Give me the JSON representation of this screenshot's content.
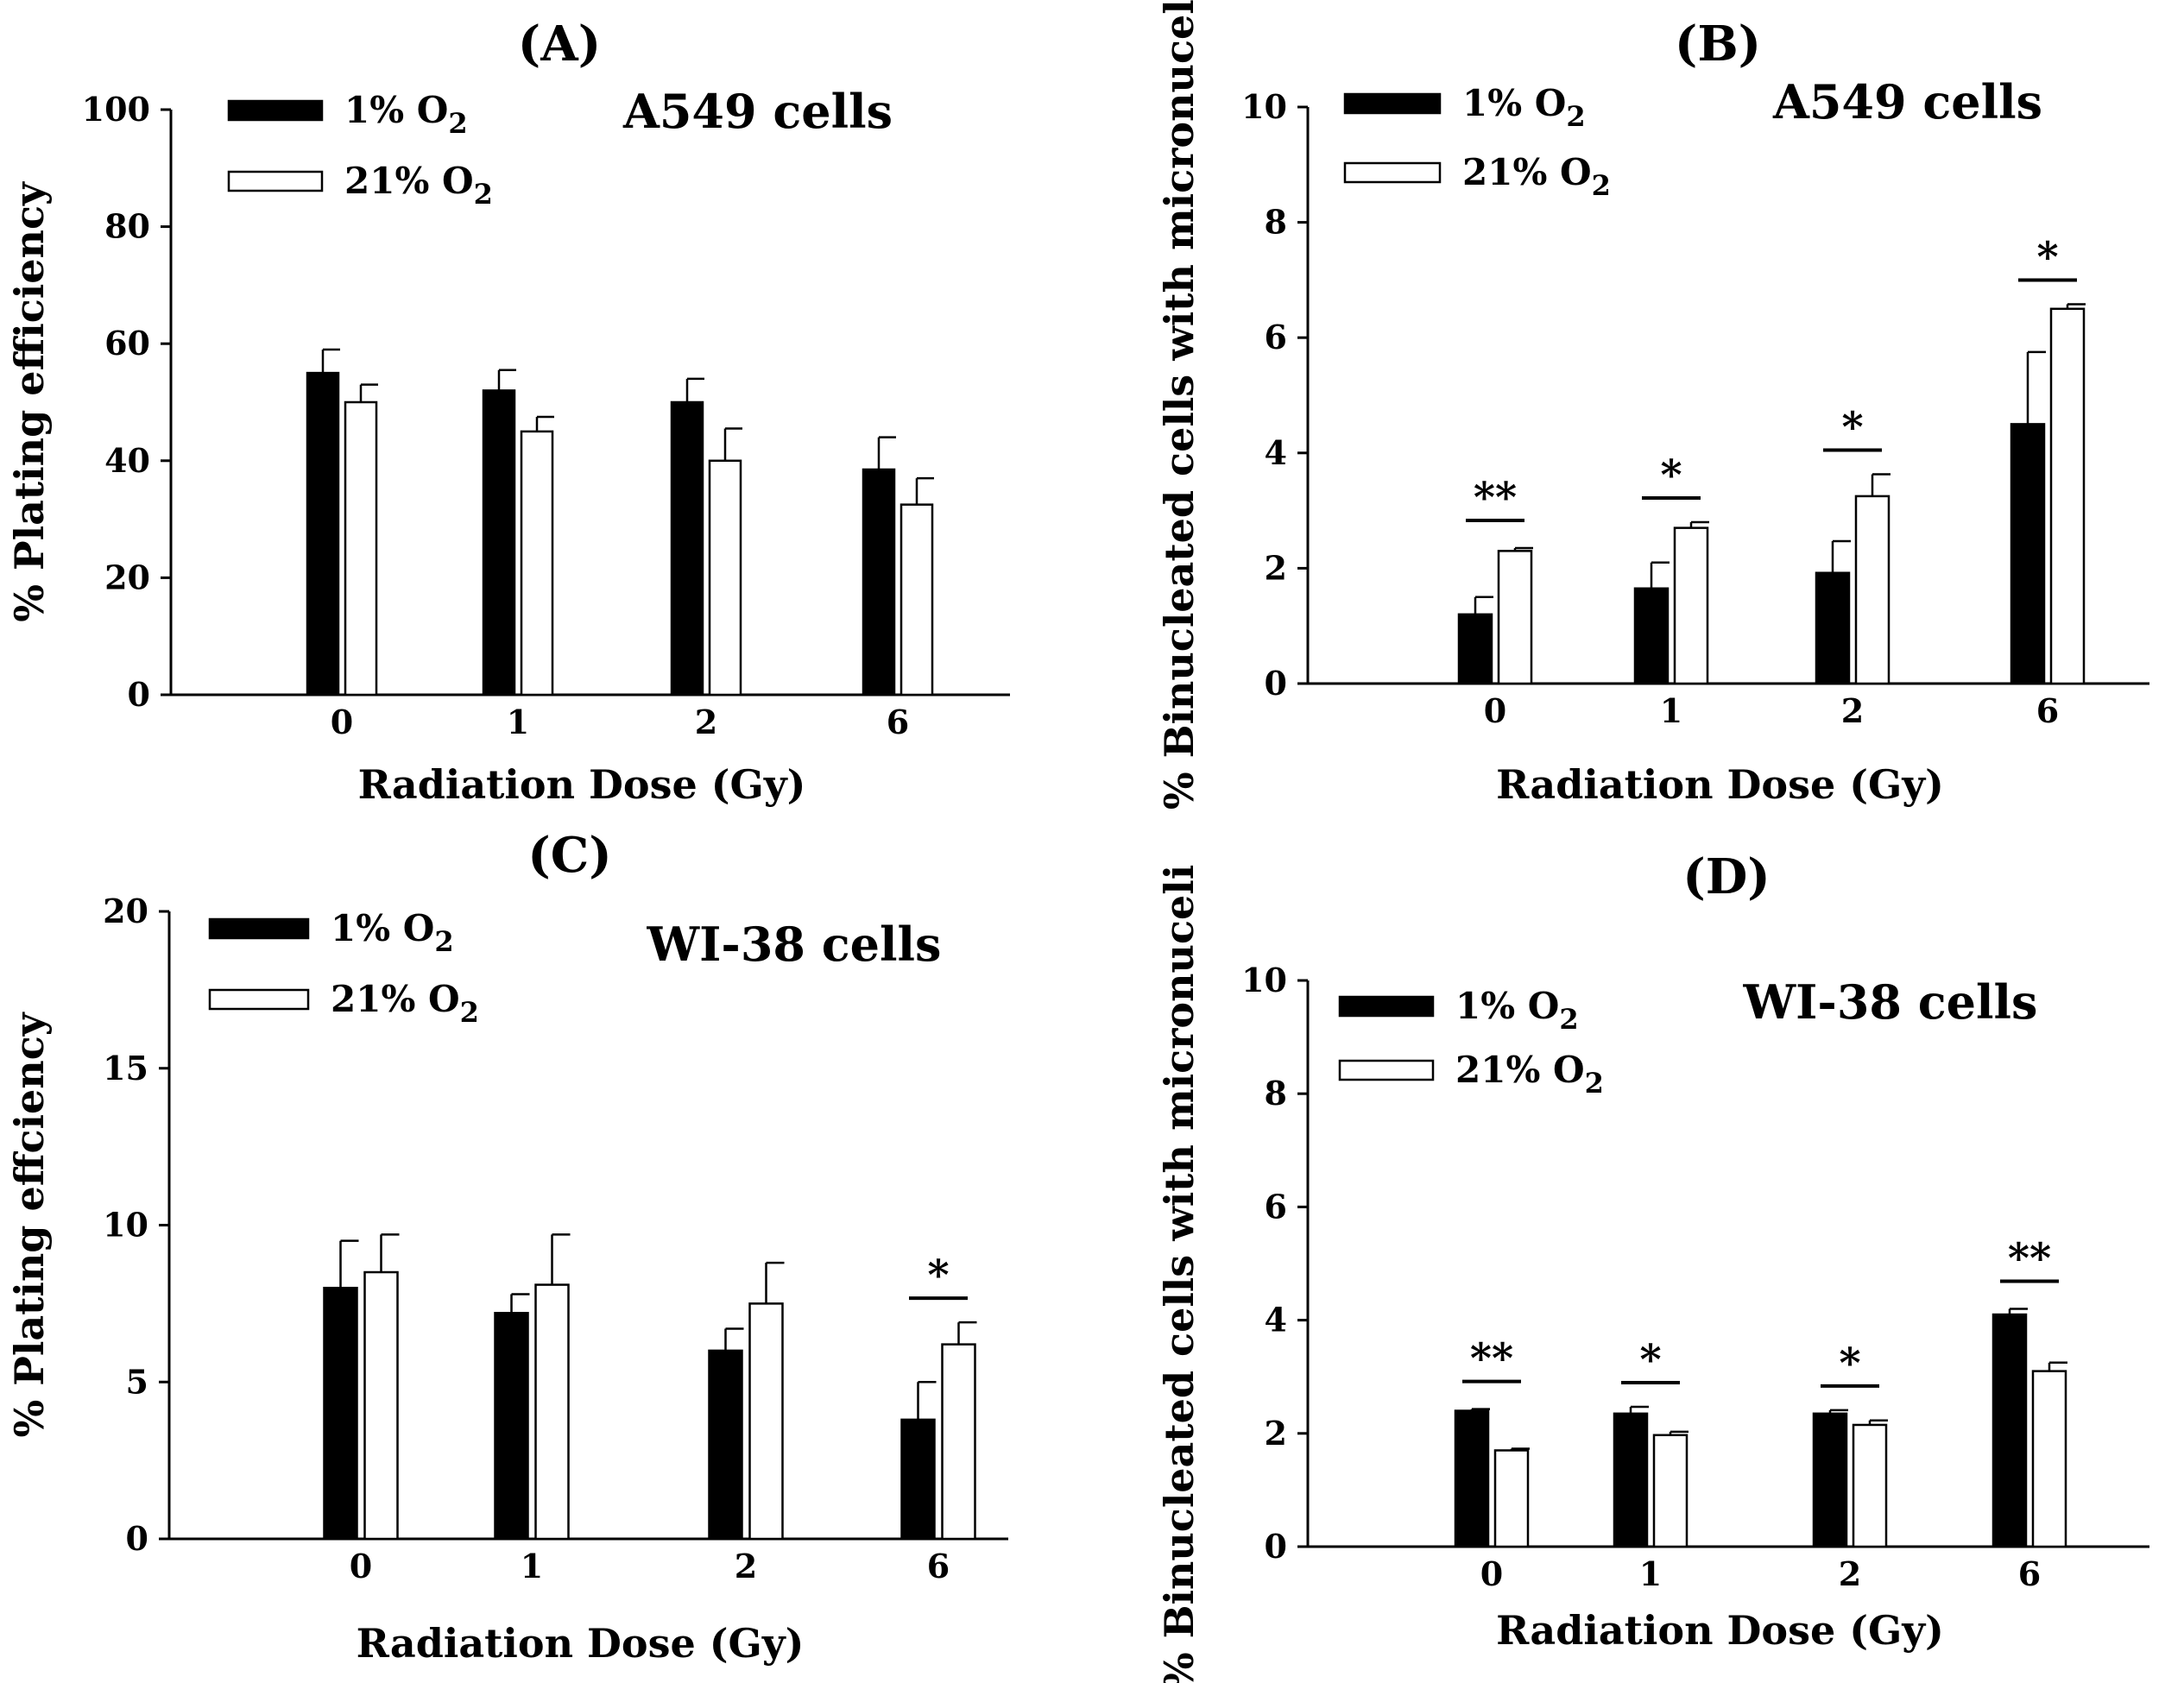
{
  "chart_data": [
    {
      "type": "bar",
      "panel_label": "(A)",
      "cell_line": "A549 cells",
      "xlabel": "Radiation Dose (Gy)",
      "ylabel": "% Plating efficiency",
      "categories": [
        "0",
        "1",
        "2",
        "6"
      ],
      "ylim": [
        0,
        100
      ],
      "yticks": [
        "0",
        "20",
        "40",
        "60",
        "80",
        "100"
      ],
      "legend_position": "top-left",
      "series": [
        {
          "name": "1% O2",
          "legend_text": "1% O",
          "legend_subscript": "2",
          "color": "#000000",
          "values": [
            55,
            52,
            50,
            38.5
          ],
          "errors": [
            4,
            3.5,
            4,
            5.5
          ]
        },
        {
          "name": "21% O2",
          "legend_text": "21% O",
          "legend_subscript": "2",
          "color": "#ffffff",
          "values": [
            50,
            45,
            40,
            32.5
          ],
          "errors": [
            3,
            2.5,
            5.5,
            4.5
          ]
        }
      ],
      "significance": [
        "",
        "",
        "",
        ""
      ]
    },
    {
      "type": "bar",
      "panel_label": "(B)",
      "cell_line": "A549 cells",
      "xlabel": "Radiation Dose (Gy)",
      "ylabel": "% Binucleated cells with micronuceli",
      "categories": [
        "0",
        "1",
        "2",
        "6"
      ],
      "ylim": [
        0,
        10
      ],
      "yticks": [
        "0",
        "2",
        "4",
        "6",
        "8",
        "10"
      ],
      "legend_position": "top-left",
      "series": [
        {
          "name": "1% O2",
          "legend_text": "1% O",
          "legend_subscript": "2",
          "color": "#000000",
          "values": [
            1.2,
            1.65,
            1.92,
            4.5
          ],
          "errors": [
            0.3,
            0.45,
            0.55,
            1.25
          ]
        },
        {
          "name": "21% O2",
          "legend_text": "21% O",
          "legend_subscript": "2",
          "color": "#ffffff",
          "values": [
            2.3,
            2.7,
            3.25,
            6.5
          ],
          "errors": [
            0.05,
            0.1,
            0.38,
            0.08
          ]
        }
      ],
      "significance": [
        "**",
        "*",
        "*",
        "*"
      ]
    },
    {
      "type": "bar",
      "panel_label": "(C)",
      "cell_line": "WI-38 cells",
      "xlabel": "Radiation Dose (Gy)",
      "ylabel": "% Plating effciency",
      "categories": [
        "0",
        "1",
        "2",
        "6"
      ],
      "ylim": [
        0,
        20
      ],
      "yticks": [
        "0",
        "5",
        "10",
        "15",
        "20"
      ],
      "legend_position": "top-left",
      "series": [
        {
          "name": "1% O2",
          "legend_text": "1% O",
          "legend_subscript": "2",
          "color": "#000000",
          "values": [
            8.0,
            7.2,
            6.0,
            3.8
          ],
          "errors": [
            1.5,
            0.6,
            0.7,
            1.2
          ]
        },
        {
          "name": "21% O2",
          "legend_text": "21% O",
          "legend_subscript": "2",
          "color": "#ffffff",
          "values": [
            8.5,
            8.1,
            7.5,
            6.2
          ],
          "errors": [
            1.2,
            1.6,
            1.3,
            0.7
          ]
        }
      ],
      "significance": [
        "",
        "",
        "",
        "*"
      ]
    },
    {
      "type": "bar",
      "panel_label": "(D)",
      "cell_line": "WI-38 cells",
      "xlabel": "Radiation Dose (Gy)",
      "ylabel": "% Binucleated cells with micronuceli",
      "categories": [
        "0",
        "1",
        "2",
        "6"
      ],
      "ylim": [
        0,
        10
      ],
      "yticks": [
        "0",
        "2",
        "4",
        "6",
        "8",
        "10"
      ],
      "legend_position": "top-left",
      "series": [
        {
          "name": "1% O2",
          "legend_text": "1% O",
          "legend_subscript": "2",
          "color": "#000000",
          "values": [
            2.4,
            2.35,
            2.35,
            4.1
          ],
          "errors": [
            0.03,
            0.12,
            0.06,
            0.1
          ]
        },
        {
          "name": "21% O2",
          "legend_text": "21% O",
          "legend_subscript": "2",
          "color": "#ffffff",
          "values": [
            1.7,
            1.97,
            2.15,
            3.1
          ],
          "errors": [
            0.03,
            0.06,
            0.08,
            0.15
          ]
        }
      ],
      "significance": [
        "**",
        "*",
        "*",
        "**"
      ]
    }
  ]
}
